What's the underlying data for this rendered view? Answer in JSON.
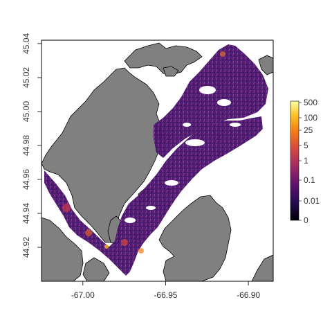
{
  "map": {
    "x_ticks": [
      {
        "value": -67.0,
        "label": "-67.00"
      },
      {
        "value": -66.95,
        "label": "-66.95"
      },
      {
        "value": -66.9,
        "label": "-66.90"
      }
    ],
    "y_ticks": [
      {
        "value": 44.92,
        "label": "44.92"
      },
      {
        "value": 44.94,
        "label": "44.94"
      },
      {
        "value": 44.96,
        "label": "44.96"
      },
      {
        "value": 44.98,
        "label": "44.98"
      },
      {
        "value": 45.0,
        "label": "45.00"
      },
      {
        "value": 45.02,
        "label": "45.02"
      },
      {
        "value": 45.04,
        "label": "45.04"
      }
    ],
    "xlim": [
      -67.025,
      -66.885
    ],
    "ylim": [
      44.9,
      45.042
    ],
    "colors": {
      "land": "#808080",
      "water": "#ffffff",
      "frame": "#000000"
    }
  },
  "legend": {
    "labels": [
      "500",
      "100",
      "25",
      "5",
      "1",
      "0.1",
      "0.01",
      "0"
    ],
    "scale": "log",
    "palette": [
      "#fcffa4",
      "#fac228",
      "#f57d15",
      "#d44842",
      "#9f2a63",
      "#65156e",
      "#280b53",
      "#000004"
    ]
  }
}
